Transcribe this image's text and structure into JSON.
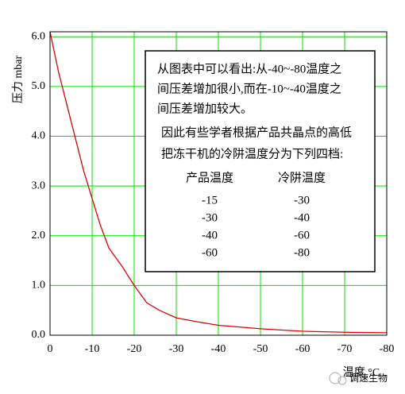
{
  "chart_data": {
    "type": "line",
    "y_label": "压力 mbar",
    "x_label": "温度 °C",
    "x": [
      0,
      -2,
      -5,
      -8,
      -10,
      -12,
      -14,
      -17,
      -20,
      -23,
      -26,
      -30,
      -35,
      -40,
      -50,
      -60,
      -70,
      -80
    ],
    "series": [
      {
        "color": "#e00000",
        "values": [
          6.1,
          5.3,
          4.3,
          3.3,
          2.75,
          2.2,
          1.75,
          1.4,
          1.0,
          0.65,
          0.5,
          0.35,
          0.27,
          0.2,
          0.13,
          0.08,
          0.06,
          0.05
        ]
      }
    ],
    "xlim": [
      0,
      -80
    ],
    "xticks": [
      0,
      -10,
      -20,
      -30,
      -40,
      -50,
      -60,
      -70,
      -80
    ],
    "ylim": [
      0,
      6.1
    ],
    "yticks": [
      {
        "value": 0,
        "label": "0.0"
      },
      {
        "value": 1,
        "label": "1.0"
      },
      {
        "value": 2,
        "label": "2.0"
      },
      {
        "value": 3,
        "label": "3.0"
      },
      {
        "value": 4,
        "label": "4.0"
      },
      {
        "value": 5,
        "label": "5.0"
      },
      {
        "value": 6,
        "label": "6.0"
      }
    ],
    "grid": true,
    "grid_color": "#00e000",
    "annotation": {
      "lines": [
        "从图表中可以看出:从-40~-80温度之",
        "间压差增加很小,而在-10~-40温度之",
        "间压差增加较大。",
        "因此有些学者根据产品共晶点的高低",
        "把冻干机的冷阱温度分为下列四档:"
      ],
      "table": {
        "header": [
          "产品温度",
          "冷阱温度"
        ],
        "rows": [
          [
            "-15",
            "-30"
          ],
          [
            "-30",
            "-40"
          ],
          [
            "-40",
            "-60"
          ],
          [
            "-60",
            "-80"
          ]
        ]
      }
    },
    "watermark": "调速生物"
  }
}
